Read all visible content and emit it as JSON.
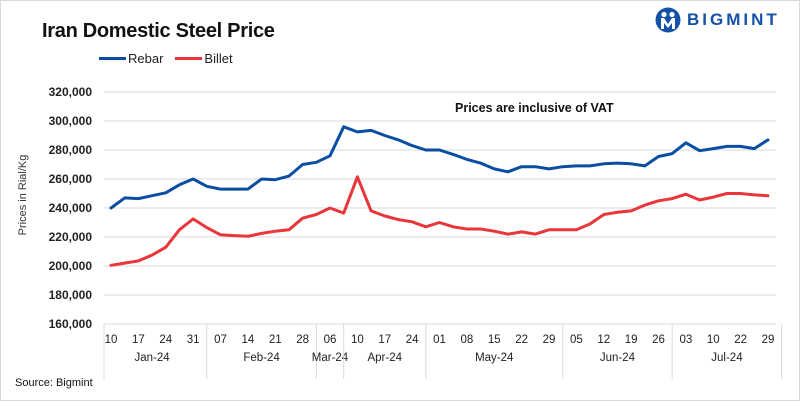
{
  "header": {
    "title": "Iran Domestic Steel Price",
    "brand": "BIGMINT",
    "note": "Prices are inclusive  of VAT",
    "source": "Source: Bigmint"
  },
  "chart_data": {
    "type": "line",
    "title": "Iran Domestic Steel Price",
    "xlabel": "",
    "ylabel": "Prices in Rial/Kg",
    "ylim": [
      160000,
      320000
    ],
    "ytick_step": 20000,
    "yticks": [
      "320,000",
      "300,000",
      "280,000",
      "260,000",
      "240,000",
      "220,000",
      "200,000",
      "180,000",
      "160,000"
    ],
    "grid": true,
    "legend_position": "top-left",
    "annotation": "Prices are inclusive  of VAT",
    "x_tick_labels": [
      "10",
      "17",
      "24",
      "31",
      "07",
      "14",
      "21",
      "28",
      "06",
      "10",
      "17",
      "24",
      "01",
      "08",
      "15",
      "22",
      "29",
      "05",
      "12",
      "19",
      "26",
      "03",
      "10",
      "22",
      "29"
    ],
    "months": [
      {
        "label": "Jan-24",
        "ticks": 4
      },
      {
        "label": "Feb-24",
        "ticks": 4
      },
      {
        "label": "Mar-24",
        "ticks": 1
      },
      {
        "label": "Apr-24",
        "ticks": 3
      },
      {
        "label": "May-24",
        "ticks": 5
      },
      {
        "label": "Jun-24",
        "ticks": 4
      },
      {
        "label": "Jul-24",
        "ticks": 4
      }
    ],
    "point_count": 49,
    "series": [
      {
        "name": "Rebar",
        "color": "#0a4ea2",
        "values": [
          240000,
          247000,
          246500,
          248500,
          250500,
          256000,
          260000,
          255000,
          253000,
          253000,
          253000,
          260000,
          259500,
          262000,
          270000,
          271500,
          276000,
          296000,
          292500,
          293500,
          290000,
          287000,
          283000,
          280000,
          280000,
          277000,
          273500,
          271000,
          267000,
          265000,
          268500,
          268500,
          267000,
          268500,
          269000,
          269000,
          270500,
          271000,
          270500,
          269000,
          275500,
          277500,
          285000,
          279500,
          281000,
          282500,
          282500,
          281000,
          287000
        ]
      },
      {
        "name": "Billet",
        "color": "#e8363a",
        "values": [
          200500,
          202000,
          203500,
          207500,
          213000,
          225000,
          232500,
          226500,
          221500,
          221000,
          220500,
          222500,
          224000,
          225000,
          233000,
          235500,
          240000,
          236500,
          261500,
          238000,
          234500,
          232000,
          230500,
          227000,
          230000,
          227000,
          225500,
          225500,
          224000,
          222000,
          223500,
          222000,
          225000,
          225000,
          225000,
          229000,
          235500,
          237000,
          238000,
          242000,
          245000,
          246500,
          249500,
          245500,
          247500,
          250000,
          250000,
          249000,
          248500
        ]
      }
    ]
  }
}
